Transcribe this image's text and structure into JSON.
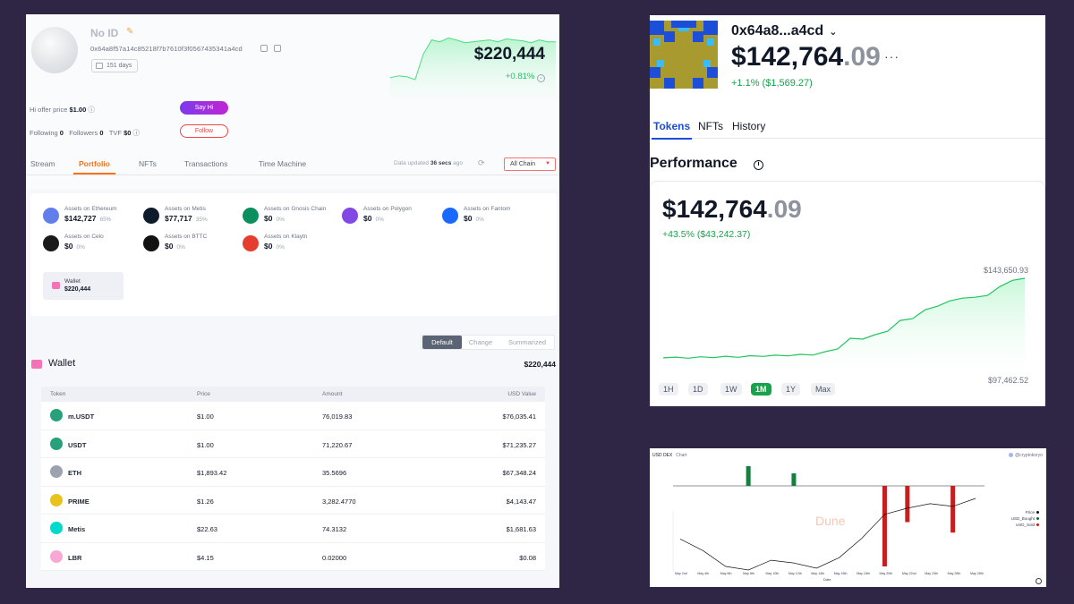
{
  "profile": {
    "name": "No ID",
    "address": "0x64a8f57a14c85218f7b7610f3f0567435341a4cd",
    "days": "151 days",
    "total": "$220,444",
    "change": "+0.81%",
    "hi_offer_label": "Hi offer price",
    "hi_offer_value": "$1.00",
    "say_hi": "Say Hi",
    "following_label": "Following",
    "following": "0",
    "followers_label": "Followers",
    "followers": "0",
    "tvf_label": "TVF",
    "tvf": "$0",
    "follow": "Follow"
  },
  "tabs": [
    "Stream",
    "Portfolio",
    "NFTs",
    "Transactions",
    "Time Machine"
  ],
  "data_updated": {
    "prefix": "Data updated",
    "value": "36 secs",
    "suffix": "ago"
  },
  "chain_select": "All Chain",
  "assets": [
    {
      "label": "Assets on Ethereum",
      "value": "$142,727",
      "pct": "65%",
      "color": "#627eea"
    },
    {
      "label": "Assets on Metis",
      "value": "$77,717",
      "pct": "35%",
      "color": "#0d1b2a"
    },
    {
      "label": "Assets on Gnosis Chain",
      "value": "$0",
      "pct": "0%",
      "color": "#0c8f5f"
    },
    {
      "label": "Assets on Polygon",
      "value": "$0",
      "pct": "0%",
      "color": "#8247e5"
    },
    {
      "label": "Assets on Fantom",
      "value": "$0",
      "pct": "0%",
      "color": "#1969ff"
    },
    {
      "label": "Assets on Celo",
      "value": "$0",
      "pct": "0%",
      "color": "#1a1a1a"
    },
    {
      "label": "Assets on BTTC",
      "value": "$0",
      "pct": "0%",
      "color": "#111111"
    },
    {
      "label": "Assets on Klaytn",
      "value": "$0",
      "pct": "0%",
      "color": "#e63e2e"
    }
  ],
  "wallet_box": {
    "label": "Wallet",
    "value": "$220,444"
  },
  "view_options": [
    "Default",
    "Change",
    "Summarized"
  ],
  "wallet": {
    "title": "Wallet",
    "total": "$220,444"
  },
  "table": {
    "headers": [
      "Token",
      "Price",
      "Amount",
      "USD Value"
    ],
    "rows": [
      {
        "symbol": "m.USDT",
        "price": "$1.00",
        "amount": "76,019.83",
        "usd": "$76,035.41",
        "color": "#26a17b"
      },
      {
        "symbol": "USDT",
        "price": "$1.00",
        "amount": "71,220.67",
        "usd": "$71,235.27",
        "color": "#26a17b"
      },
      {
        "symbol": "ETH",
        "price": "$1,893.42",
        "amount": "35.5696",
        "usd": "$67,348.24",
        "color": "#9ca3af"
      },
      {
        "symbol": "PRIME",
        "price": "$1.26",
        "amount": "3,282.4770",
        "usd": "$4,143.47",
        "color": "#e9c21b"
      },
      {
        "symbol": "Metis",
        "price": "$22.63",
        "amount": "74.3132",
        "usd": "$1,681.63",
        "color": "#00dacc"
      },
      {
        "symbol": "LBR",
        "price": "$4.15",
        "amount": "0.02000",
        "usd": "$0.08",
        "color": "#f9a8d4"
      }
    ]
  },
  "wallet2": {
    "address": "0x64a8...a4cd",
    "balance_int": "$142,764",
    "balance_dec": ".09",
    "change": "+1.1% ($1,569.27)",
    "tabs": [
      "Tokens",
      "NFTs",
      "History"
    ],
    "performance": "Performance",
    "perf_balance_int": "$142,764",
    "perf_balance_dec": ".09",
    "perf_change": "+43.5% ($43,242.37)",
    "high": "$143,650.93",
    "low": "$97,462.52",
    "ranges": [
      "1H",
      "1D",
      "1W",
      "1M",
      "1Y",
      "Max"
    ],
    "active_range": "1M"
  },
  "dune": {
    "title": "USD DEX",
    "subtitle": "Chart",
    "author": "@cryptokoryo",
    "legend": [
      "Price",
      "USD_Bought",
      "USD_Sold"
    ],
    "legend_colors": [
      "#111111",
      "#166534",
      "#b91c1c"
    ],
    "watermark": "Dune",
    "xlabel": "Date",
    "x_ticks": [
      "May 2nd",
      "May 4th",
      "May 6th",
      "May 8th",
      "May 10th",
      "May 12th",
      "May 14th",
      "May 16th",
      "May 18th",
      "May 20th",
      "May 22nd",
      "May 24th",
      "May 26th",
      "May 28th"
    ]
  },
  "chart_data": [
    {
      "type": "line",
      "title": "",
      "x": [
        0,
        1,
        2,
        3,
        4,
        5,
        6,
        7,
        8,
        9,
        10,
        11,
        12,
        13,
        14,
        15,
        16,
        17,
        18,
        19,
        20
      ],
      "series": [
        {
          "values": [
            20,
            22,
            21,
            18,
            45,
            60,
            58,
            62,
            60,
            57,
            58,
            59,
            60,
            58,
            61,
            60,
            59,
            57,
            60,
            58,
            58
          ]
        }
      ],
      "ylim": [
        0,
        70
      ]
    },
    {
      "type": "line",
      "title": "Performance",
      "y_range_labels": [
        "$97,462.52",
        "$143,650.93"
      ],
      "x": [
        0,
        1,
        2,
        3,
        4,
        5,
        6,
        7,
        8,
        9,
        10,
        11,
        12,
        13,
        14,
        15,
        16,
        17,
        18,
        19,
        20,
        21,
        22,
        23,
        24,
        25,
        26,
        27,
        28,
        29
      ],
      "series": [
        {
          "values": [
            99000,
            99400,
            98800,
            99600,
            99100,
            99900,
            99300,
            100200,
            99800,
            100500,
            100100,
            101000,
            100600,
            102500,
            104000,
            110000,
            109500,
            112000,
            114000,
            120000,
            121000,
            126000,
            128000,
            131000,
            132500,
            133000,
            134000,
            139000,
            142500,
            143650
          ]
        }
      ],
      "ylim": [
        97462.52,
        143650.93
      ]
    },
    {
      "type": "bar",
      "title": "USD DEX",
      "xlabel": "Date",
      "categories": [
        "May 2nd",
        "May 4th",
        "May 6th",
        "May 8th",
        "May 10th",
        "May 12th",
        "May 14th",
        "May 16th",
        "May 18th",
        "May 20th",
        "May 22nd",
        "May 24th",
        "May 26th",
        "May 28th"
      ],
      "series": [
        {
          "name": "USD_Bought",
          "values": [
            0,
            0,
            0,
            2.2,
            0,
            1.4,
            0,
            0,
            0,
            0,
            0,
            0,
            0,
            0
          ]
        },
        {
          "name": "USD_Sold",
          "values": [
            0,
            0,
            0,
            0,
            0,
            0,
            0,
            0,
            0,
            -10,
            -4.5,
            0,
            -5.8,
            0
          ]
        },
        {
          "name": "Price",
          "values": [
            0.55,
            0.42,
            0.24,
            0.2,
            0.31,
            0.28,
            0.22,
            0.34,
            0.56,
            0.83,
            0.9,
            0.95,
            0.92,
            1.01
          ]
        }
      ]
    }
  ]
}
